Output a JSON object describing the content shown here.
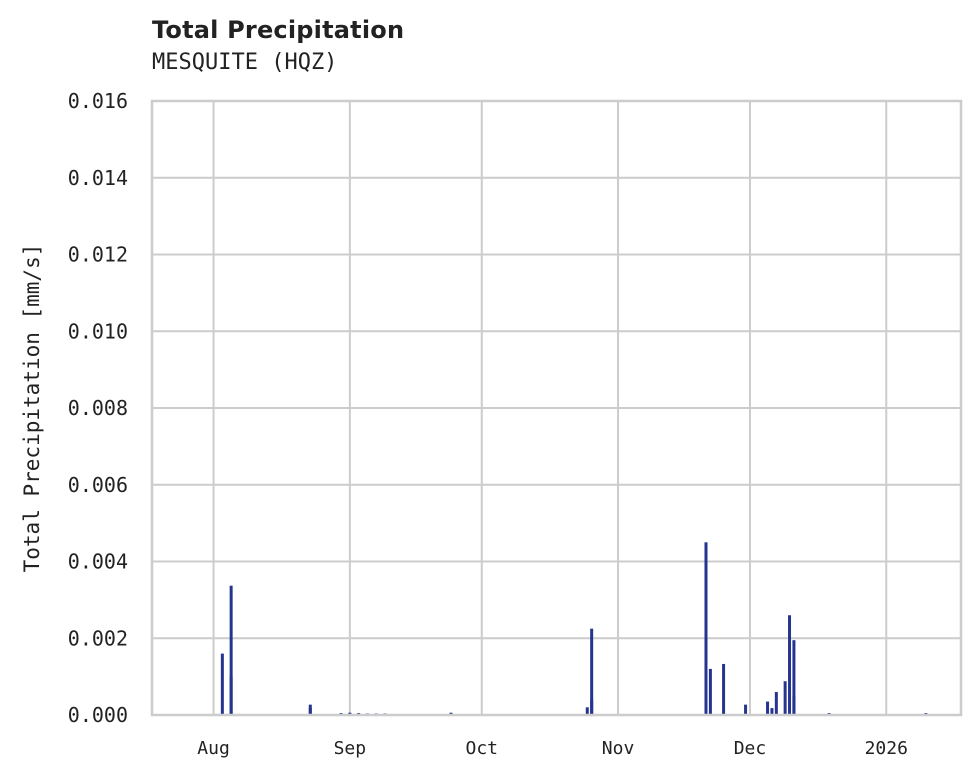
{
  "header": {
    "title": "Total Precipitation",
    "subtitle": "MESQUITE (HQZ)"
  },
  "colors": {
    "bar": "#25348f",
    "grid": "#cccccc",
    "axis": "#cccccc",
    "text": "#222222"
  },
  "chart_data": {
    "type": "bar",
    "title": "Total Precipitation",
    "subtitle": "MESQUITE (HQZ)",
    "xlabel": "",
    "ylabel": "Total Precipitation [mm/s]",
    "ylim": [
      0,
      0.016
    ],
    "yticks": [
      "0.000",
      "0.002",
      "0.004",
      "0.006",
      "0.008",
      "0.010",
      "0.012",
      "0.014",
      "0.016"
    ],
    "xticks": [
      "Aug",
      "Sep",
      "Oct",
      "Nov",
      "Dec",
      "2026"
    ],
    "xrange": [
      "2025-07-18",
      "2026-01-18"
    ],
    "grid": true,
    "legend": null,
    "series": [
      {
        "name": "Total Precipitation",
        "points": [
          {
            "date": "2025-08-03",
            "value": 0.0016
          },
          {
            "date": "2025-08-05",
            "value": 0.001
          },
          {
            "date": "2025-08-05",
            "value": 0.00337
          },
          {
            "date": "2025-08-23",
            "value": 0.00027
          },
          {
            "date": "2025-08-23",
            "value": 0.00018
          },
          {
            "date": "2025-08-30",
            "value": 5e-05
          },
          {
            "date": "2025-09-01",
            "value": 6e-05
          },
          {
            "date": "2025-09-03",
            "value": 5e-05
          },
          {
            "date": "2025-09-05",
            "value": 4e-05
          },
          {
            "date": "2025-09-07",
            "value": 4e-05
          },
          {
            "date": "2025-09-09",
            "value": 4e-05
          },
          {
            "date": "2025-09-24",
            "value": 6e-05
          },
          {
            "date": "2025-10-25",
            "value": 0.0002
          },
          {
            "date": "2025-10-26",
            "value": 0.0004
          },
          {
            "date": "2025-10-26",
            "value": 0.00225
          },
          {
            "date": "2025-11-21",
            "value": 0.0045
          },
          {
            "date": "2025-11-22",
            "value": 0.0012
          },
          {
            "date": "2025-11-25",
            "value": 0.00133
          },
          {
            "date": "2025-11-30",
            "value": 0.00027
          },
          {
            "date": "2025-12-05",
            "value": 0.00035
          },
          {
            "date": "2025-12-06",
            "value": 0.00018
          },
          {
            "date": "2025-12-07",
            "value": 0.0006
          },
          {
            "date": "2025-12-09",
            "value": 0.00088
          },
          {
            "date": "2025-12-10",
            "value": 0.0026
          },
          {
            "date": "2025-12-11",
            "value": 0.0005
          },
          {
            "date": "2025-12-11",
            "value": 0.00195
          },
          {
            "date": "2025-12-19",
            "value": 5e-05
          },
          {
            "date": "2026-01-10",
            "value": 5e-05
          }
        ]
      }
    ]
  }
}
